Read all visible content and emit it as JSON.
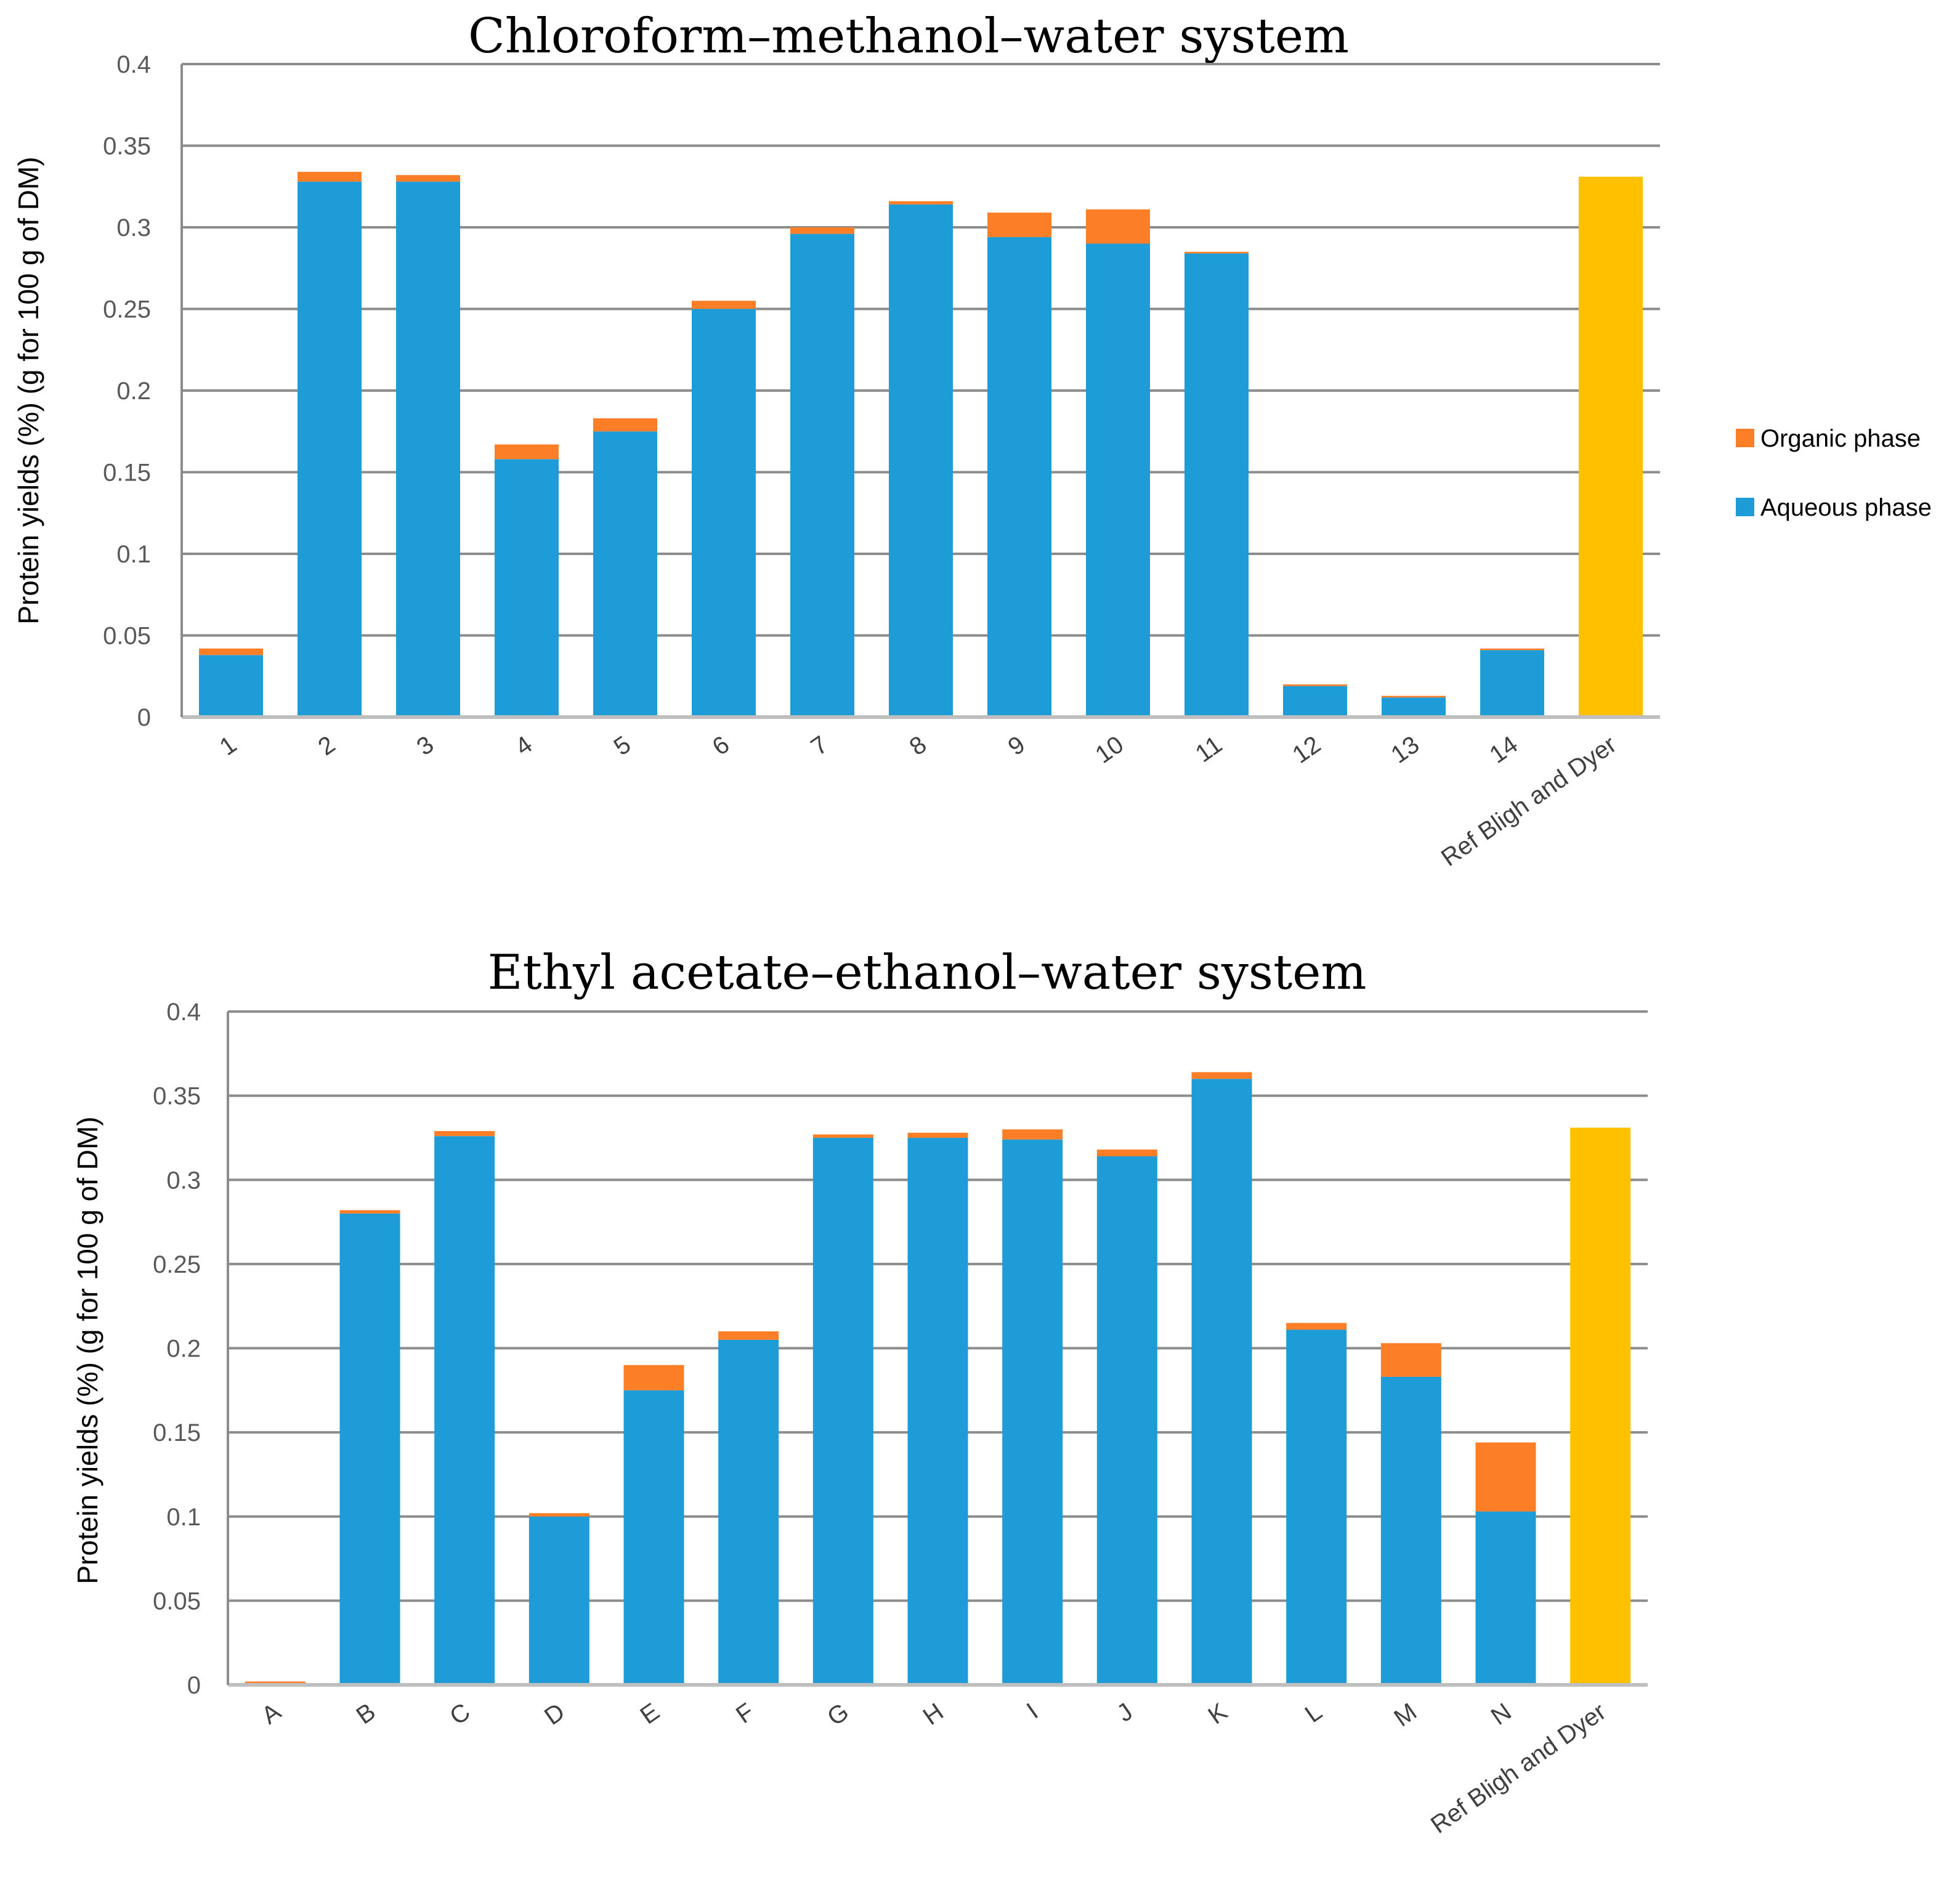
{
  "colors": {
    "aqueous": "#1e9cd7",
    "organic": "#fc7e27",
    "reference": "#ffc000"
  },
  "legend": {
    "position": "right",
    "items": [
      "Organic phase",
      "Aqueous phase"
    ]
  },
  "chart_data": [
    {
      "type": "bar",
      "stacked": true,
      "title": "Chloroform–methanol–water system",
      "xlabel": "",
      "ylabel": "Protein yields (%) (g for 100 g of DM)",
      "ylim": [
        0,
        0.4
      ],
      "yticks": [
        "0",
        "0.05",
        "0.1",
        "0.15",
        "0.2",
        "0.25",
        "0.3",
        "0.35",
        "0.4"
      ],
      "grid": true,
      "categories": [
        "1",
        "2",
        "3",
        "4",
        "5",
        "6",
        "7",
        "8",
        "9",
        "10",
        "11",
        "12",
        "13",
        "14",
        "Ref  Bligh and Dyer"
      ],
      "series": [
        {
          "name": "Aqueous phase",
          "values": [
            0.038,
            0.328,
            0.328,
            0.158,
            0.175,
            0.25,
            0.296,
            0.314,
            0.294,
            0.29,
            0.284,
            0.019,
            0.012,
            0.041,
            0
          ]
        },
        {
          "name": "Organic phase",
          "values": [
            0.004,
            0.006,
            0.004,
            0.009,
            0.008,
            0.005,
            0.004,
            0.002,
            0.015,
            0.021,
            0.001,
            0.001,
            0.001,
            0.001,
            0
          ]
        },
        {
          "name": "",
          "values": [
            0,
            0,
            0,
            0,
            0,
            0,
            0,
            0,
            0,
            0,
            0,
            0,
            0,
            0,
            0.331
          ]
        }
      ]
    },
    {
      "type": "bar",
      "stacked": true,
      "title": "Ethyl acetate–ethanol–water system",
      "xlabel": "",
      "ylabel": "Protein yields (%) (g for 100 g of DM)",
      "ylim": [
        0,
        0.4
      ],
      "yticks": [
        "0",
        "0.05",
        "0.1",
        "0.15",
        "0.2",
        "0.25",
        "0.3",
        "0.35",
        "0.4"
      ],
      "grid": true,
      "categories": [
        "A",
        "B",
        "C",
        "D",
        "E",
        "F",
        "G",
        "H",
        "I",
        "J",
        "K",
        "L",
        "M",
        "N",
        "Ref  Bligh and Dyer"
      ],
      "series": [
        {
          "name": "Aqueous phase",
          "values": [
            0,
            0.28,
            0.326,
            0.1,
            0.175,
            0.205,
            0.325,
            0.325,
            0.324,
            0.314,
            0.36,
            0.211,
            0.183,
            0.103,
            0
          ]
        },
        {
          "name": "Organic phase",
          "values": [
            0.002,
            0.002,
            0.003,
            0.002,
            0.015,
            0.005,
            0.002,
            0.003,
            0.006,
            0.004,
            0.004,
            0.004,
            0.02,
            0.041,
            0
          ]
        },
        {
          "name": "",
          "values": [
            0,
            0,
            0,
            0,
            0,
            0,
            0,
            0,
            0,
            0,
            0,
            0,
            0,
            0,
            0.331
          ]
        }
      ]
    }
  ]
}
